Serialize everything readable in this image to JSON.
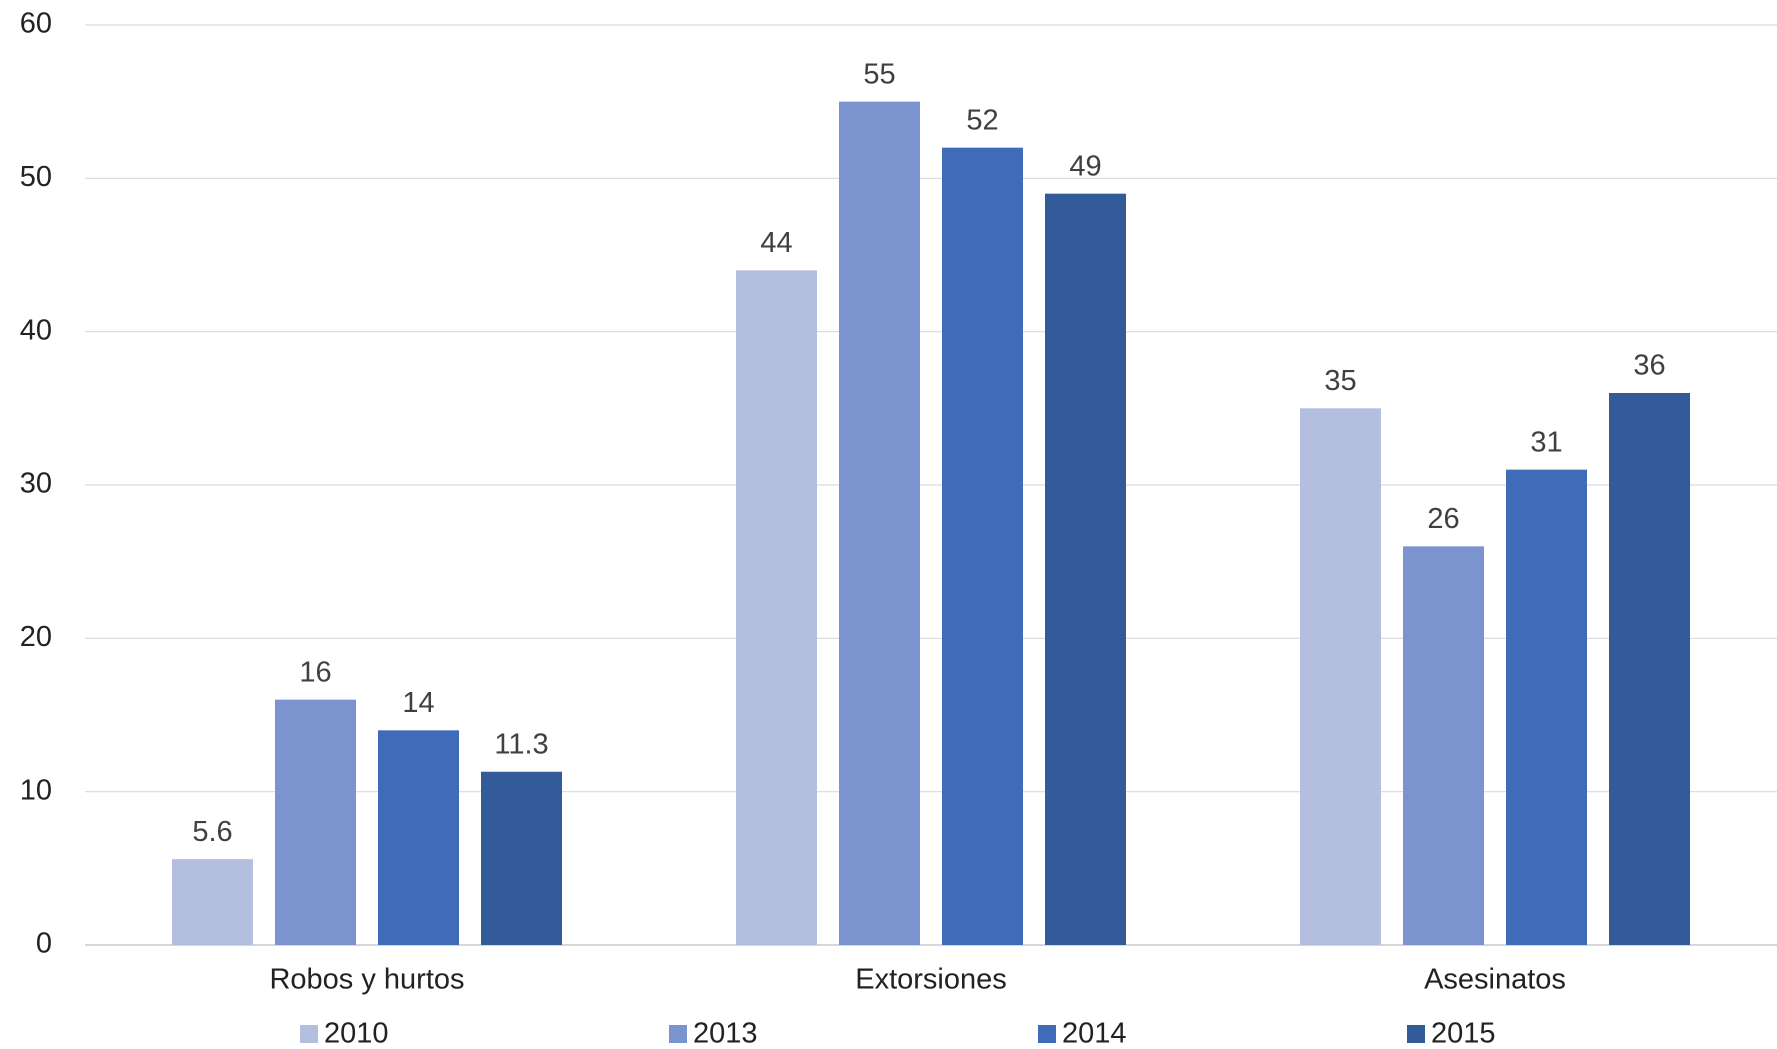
{
  "chart_data": {
    "type": "bar",
    "categories": [
      "Robos y hurtos",
      "Extorsiones",
      "Asesinatos"
    ],
    "series": [
      {
        "name": "2010",
        "color": "#b4bfdf",
        "values": [
          5.6,
          44,
          35
        ]
      },
      {
        "name": "2013",
        "color": "#7b93cf",
        "values": [
          16,
          55,
          26
        ]
      },
      {
        "name": "2014",
        "color": "#3f6bb8",
        "values": [
          14,
          52,
          31
        ]
      },
      {
        "name": "2015",
        "color": "#335a99",
        "values": [
          11.3,
          49,
          36
        ]
      }
    ],
    "ylim": [
      0,
      60
    ],
    "yticks": [
      0,
      10,
      20,
      30,
      40,
      50,
      60
    ],
    "grid": true,
    "legend": "bottom"
  }
}
